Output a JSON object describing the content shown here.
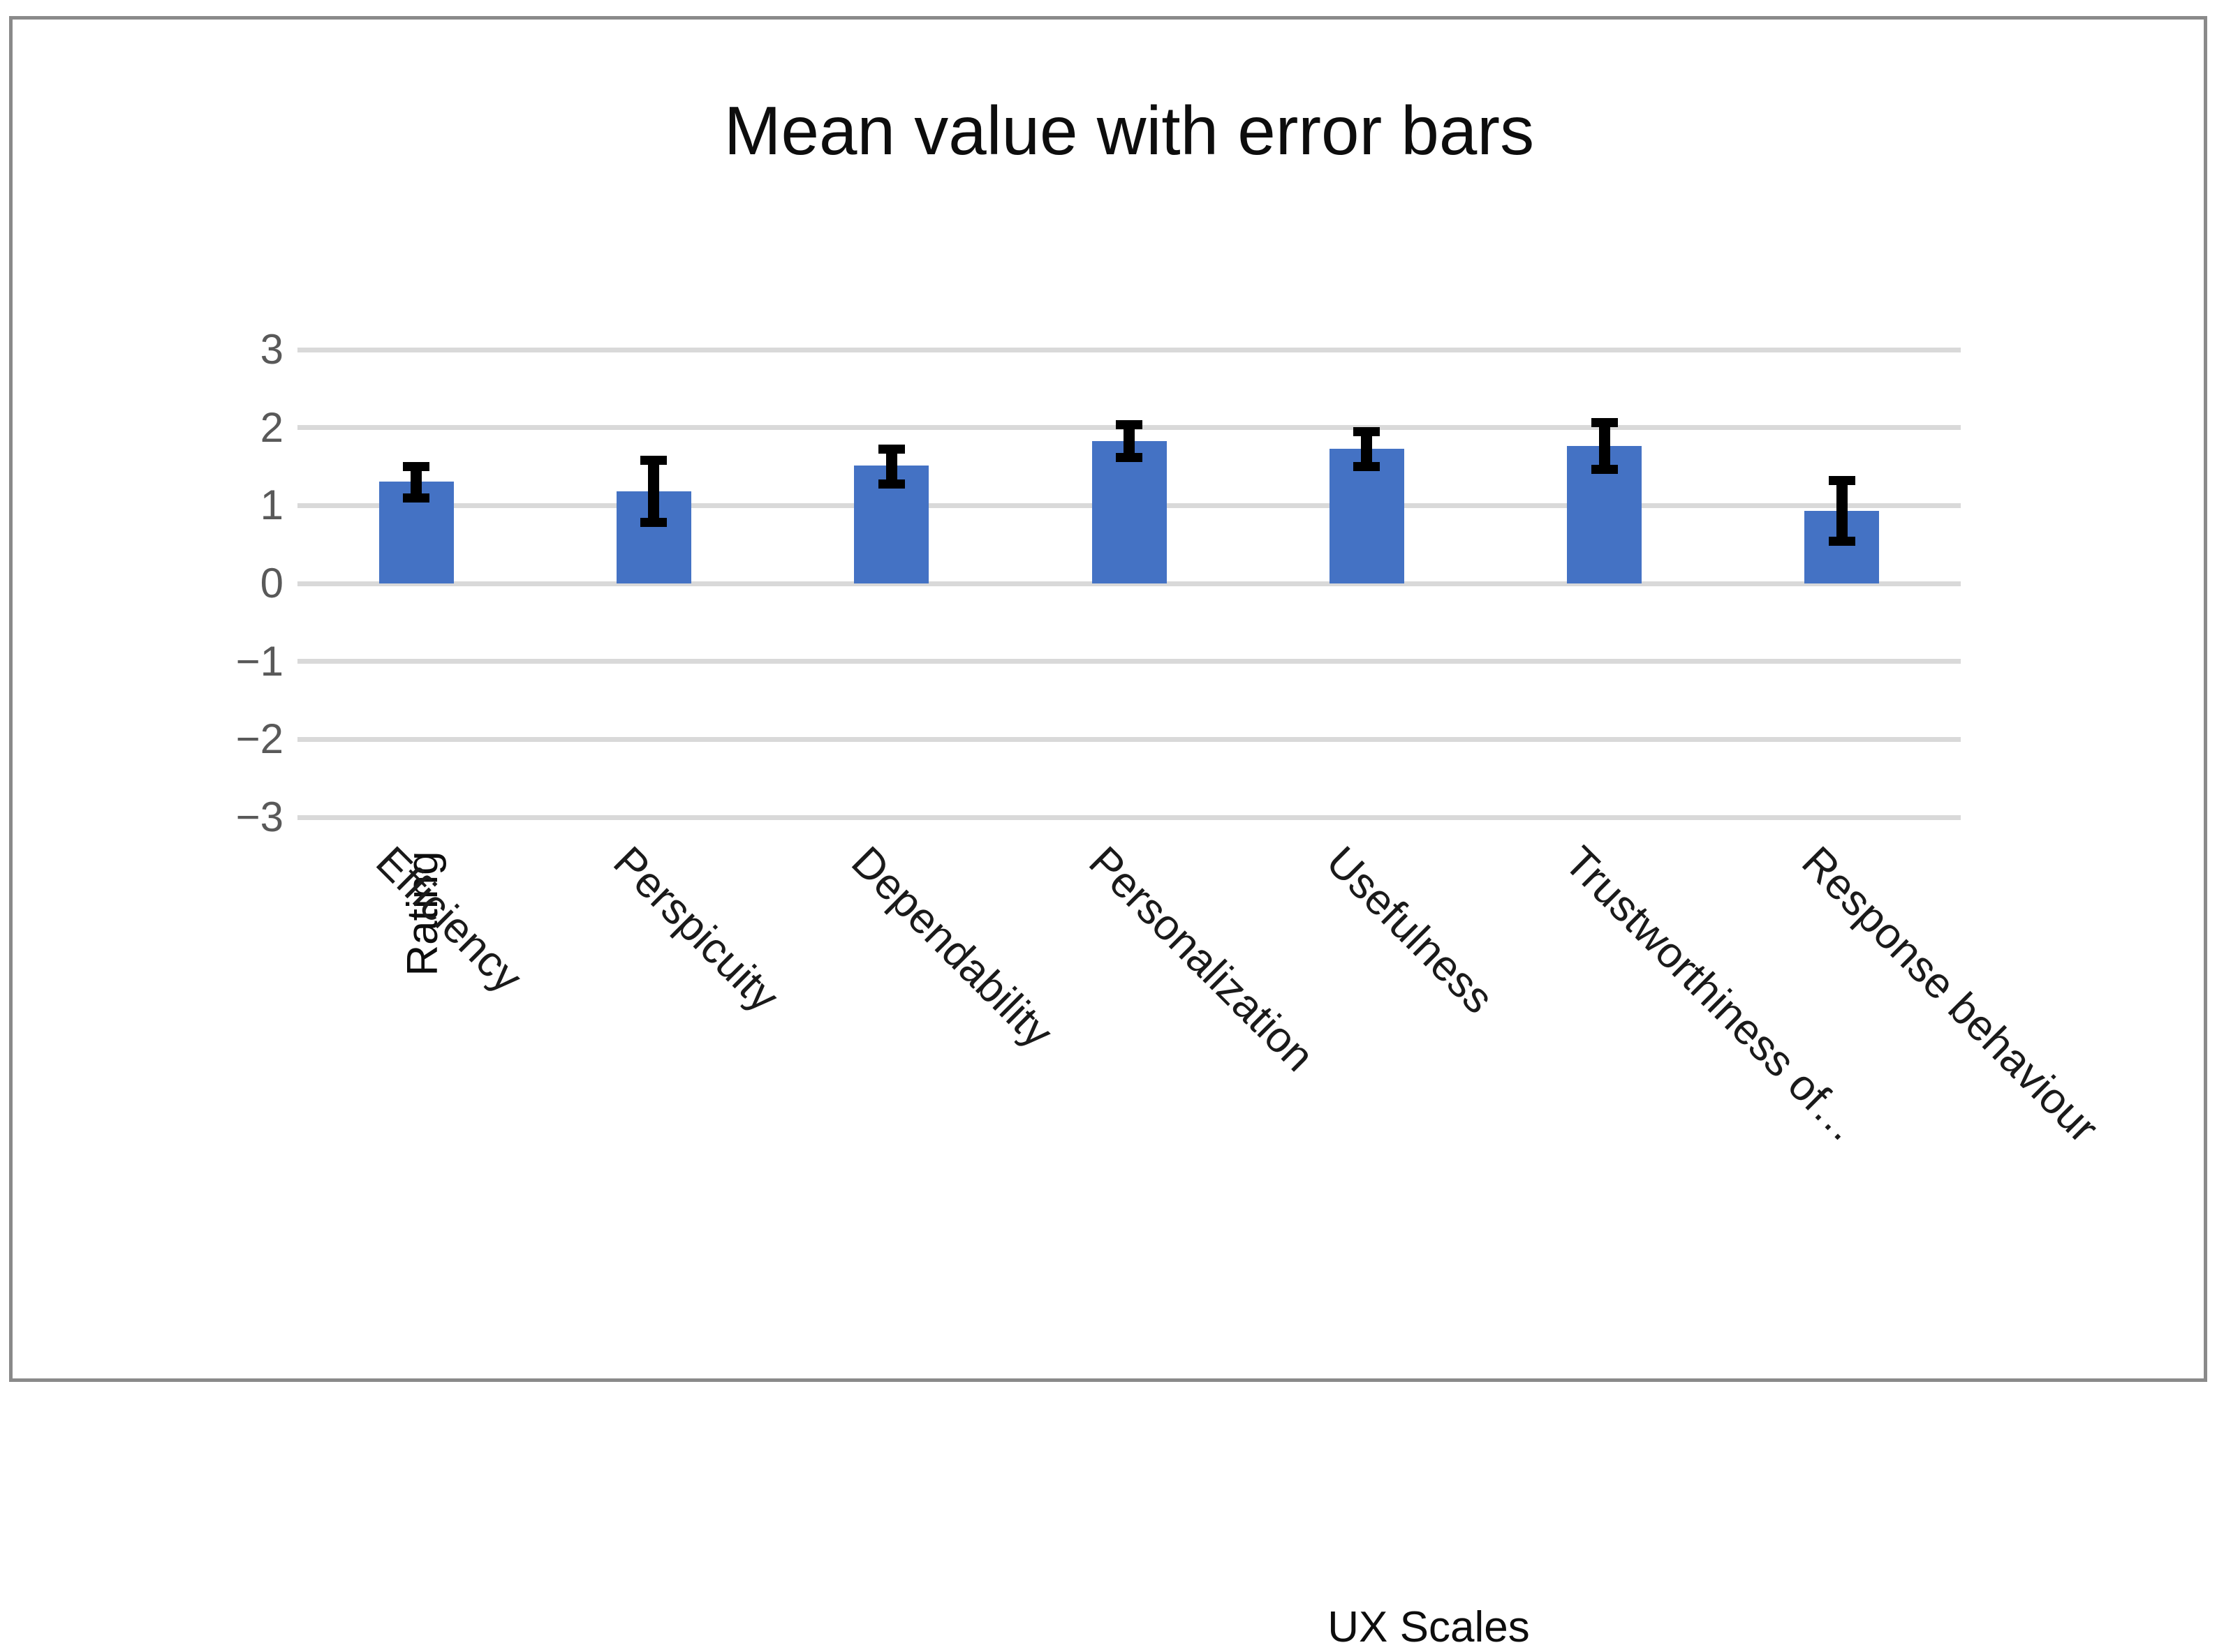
{
  "chart_data": {
    "type": "bar",
    "title": "Mean value with error bars",
    "xlabel": "UX Scales",
    "ylabel": "Rating",
    "categories": [
      "Efficiency",
      "Perspicuity",
      "Dependability",
      "Personalization",
      "Usefulness",
      "Trustworthiness of…",
      "Response behaviour"
    ],
    "values": [
      1.31,
      1.18,
      1.51,
      1.83,
      1.73,
      1.76,
      0.93
    ],
    "error_low": [
      1.1,
      0.78,
      1.28,
      1.62,
      1.5,
      1.46,
      0.54
    ],
    "error_high": [
      1.5,
      1.58,
      1.72,
      2.04,
      1.95,
      2.06,
      1.32
    ],
    "ylim": [
      -3,
      3
    ],
    "ytick_step": 1,
    "yticks": [
      "3",
      "2",
      "1",
      "0",
      "−1",
      "−2",
      "−3"
    ],
    "grid": "horizontal",
    "legend_position": "none",
    "colors": {
      "bar": "#4472C4",
      "error_bar": "#000000",
      "gridline": "#D9D9D9",
      "tick_label": "#595959",
      "text": "#0d0d0d",
      "frame_border": "#8a8a8a",
      "background": "#FFFFFF"
    }
  }
}
